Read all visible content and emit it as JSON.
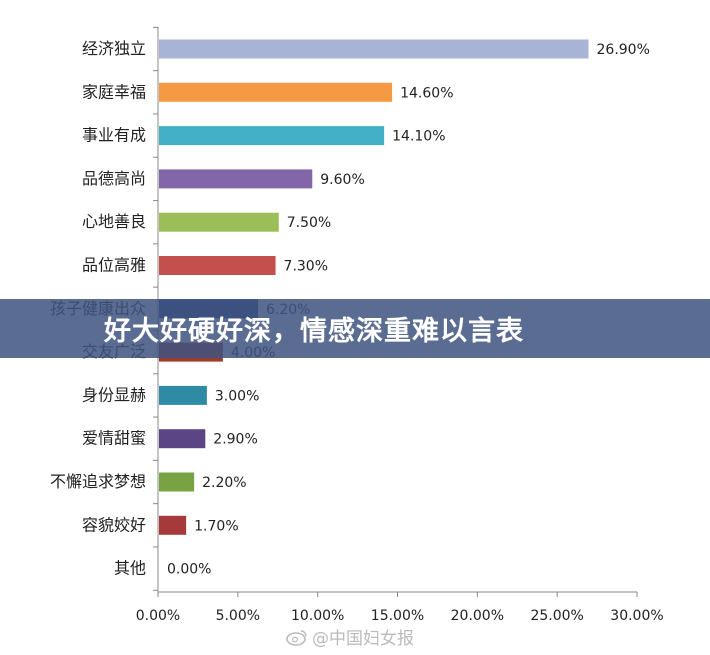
{
  "chart_data": {
    "type": "bar",
    "orientation": "horizontal",
    "categories": [
      "经济独立",
      "家庭幸福",
      "事业有成",
      "品德高尚",
      "心地善良",
      "品位高雅",
      "孩子健康出众",
      "交友广泛",
      "身份显赫",
      "爱情甜蜜",
      "不懈追求梦想",
      "容貌姣好",
      "其他"
    ],
    "values": [
      26.9,
      14.6,
      14.1,
      9.6,
      7.5,
      7.3,
      6.2,
      4.0,
      3.0,
      2.9,
      2.2,
      1.7,
      0.0
    ],
    "value_labels": [
      "26.90%",
      "14.60%",
      "14.10%",
      "9.60%",
      "7.50%",
      "7.30%",
      "6.20%",
      "4.00%",
      "3.00%",
      "2.90%",
      "2.20%",
      "1.70%",
      "0.00%"
    ],
    "colors": [
      "#a7b4d6",
      "#f59a42",
      "#44b0c8",
      "#8266a8",
      "#9bbe58",
      "#c4504d",
      "#24437a",
      "#9b3c2c",
      "#2f8aa3",
      "#5c4584",
      "#78a345",
      "#a6393a",
      "#888888"
    ],
    "xlim": [
      0,
      30
    ],
    "x_ticks": [
      "0.00%",
      "5.00%",
      "10.00%",
      "15.00%",
      "20.00%",
      "25.00%",
      "30.00%"
    ],
    "grid": false,
    "legend": "none"
  },
  "banner": {
    "text": "好大好硬好深，情感深重难以言表"
  },
  "watermark": {
    "text": "@中国妇女报",
    "icon": "weibo-icon"
  }
}
